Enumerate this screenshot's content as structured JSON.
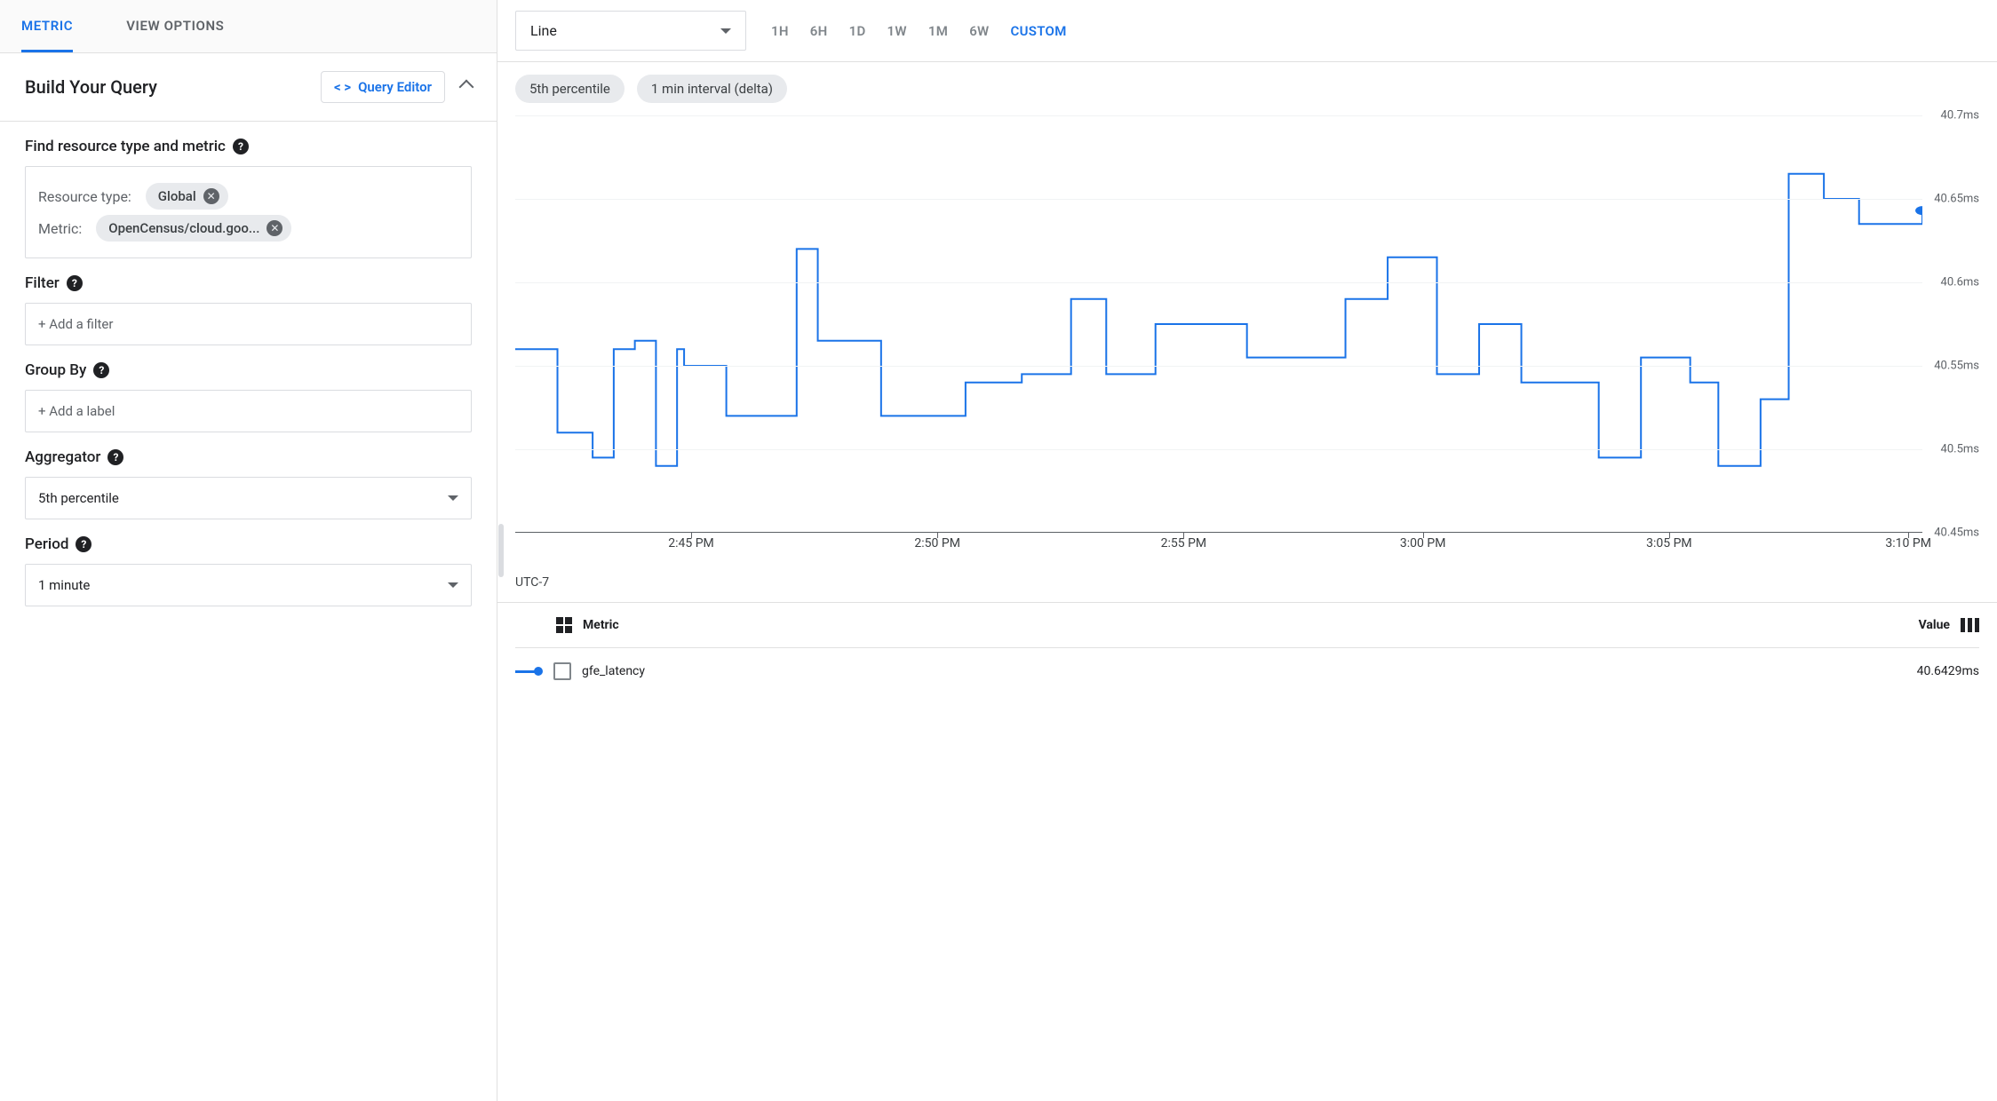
{
  "tabs": {
    "metric": "METRIC",
    "viewOptions": "VIEW OPTIONS",
    "active": "metric"
  },
  "build": {
    "title": "Build Your Query",
    "queryEditorLabel": "Query Editor",
    "findLabel": "Find resource type and metric",
    "resourceTypeLabel": "Resource type:",
    "resourceTypeValue": "Global",
    "metricLabel": "Metric:",
    "metricValue": "OpenCensus/cloud.goo...",
    "filterLabel": "Filter",
    "filterPlaceholder": "+ Add a filter",
    "groupByLabel": "Group By",
    "groupByPlaceholder": "+ Add a label",
    "aggregatorLabel": "Aggregator",
    "aggregatorValue": "5th percentile",
    "periodLabel": "Period",
    "periodValue": "1 minute"
  },
  "toolbar": {
    "chartType": "Line",
    "ranges": [
      "1H",
      "6H",
      "1D",
      "1W",
      "1M",
      "6W",
      "CUSTOM"
    ],
    "activeRange": "CUSTOM"
  },
  "pills": [
    "5th percentile",
    "1 min interval (delta)"
  ],
  "chart": {
    "type": "line",
    "line_color": "#1a73e8",
    "line_width": 2,
    "background_color": "#ffffff",
    "grid_color": "#f1f3f4",
    "marker_color": "#1a73e8",
    "marker_radius": 5,
    "y_axis": {
      "min": 40.45,
      "max": 40.7,
      "side": "right",
      "ticks": [
        40.45,
        40.5,
        40.55,
        40.6,
        40.65,
        40.7
      ],
      "tick_labels": [
        "40.45ms",
        "40.5ms",
        "40.55ms",
        "40.6ms",
        "40.65ms",
        "40.7ms"
      ],
      "label_color": "#5f6368",
      "label_fontsize": 13
    },
    "x_axis": {
      "tz_label": "UTC-7",
      "tick_labels": [
        "2:45 PM",
        "2:50 PM",
        "2:55 PM",
        "3:00 PM",
        "3:05 PM",
        "3:10 PM"
      ],
      "tick_positions": [
        0.125,
        0.3,
        0.475,
        0.645,
        0.82,
        0.99
      ],
      "axis_color": "#5f6368"
    },
    "data": {
      "x": [
        0.0,
        0.03,
        0.055,
        0.07,
        0.085,
        0.1,
        0.115,
        0.12,
        0.15,
        0.175,
        0.2,
        0.215,
        0.23,
        0.26,
        0.29,
        0.32,
        0.36,
        0.395,
        0.42,
        0.455,
        0.485,
        0.52,
        0.555,
        0.59,
        0.62,
        0.655,
        0.685,
        0.715,
        0.735,
        0.77,
        0.8,
        0.835,
        0.855,
        0.885,
        0.905,
        0.93,
        0.955,
        0.975,
        1.0
      ],
      "y": [
        40.56,
        40.51,
        40.495,
        40.56,
        40.565,
        40.49,
        40.56,
        40.55,
        40.52,
        40.52,
        40.62,
        40.565,
        40.565,
        40.52,
        40.52,
        40.54,
        40.545,
        40.59,
        40.545,
        40.575,
        40.575,
        40.555,
        40.555,
        40.59,
        40.615,
        40.545,
        40.575,
        40.54,
        40.54,
        40.495,
        40.555,
        40.54,
        40.49,
        40.53,
        40.665,
        40.65,
        40.635,
        40.635,
        40.643
      ]
    }
  },
  "legend": {
    "header_metric": "Metric",
    "header_value": "Value",
    "rows": [
      {
        "name": "gfe_latency",
        "value": "40.6429ms",
        "color": "#1a73e8"
      }
    ]
  }
}
